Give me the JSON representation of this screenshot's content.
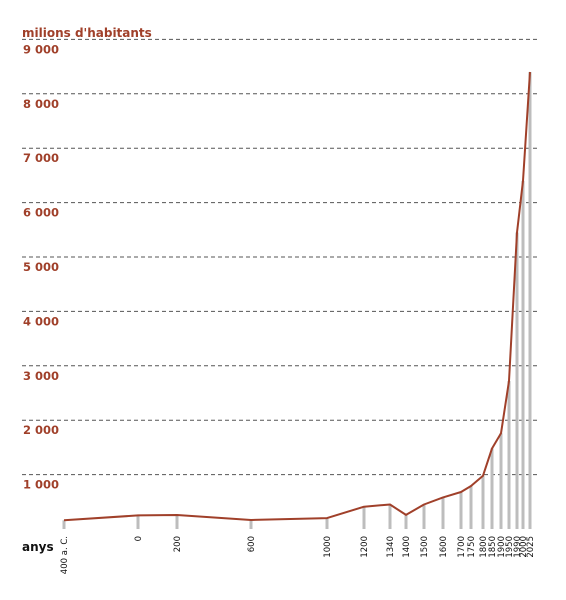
{
  "chart_data": {
    "type": "line",
    "ylabel": "milions d'habitants",
    "xlabel": "anys",
    "ylim": [
      0,
      9000
    ],
    "yticks": [
      "1 000",
      "2 000",
      "3 000",
      "4 000",
      "5 000",
      "6 000",
      "7 000",
      "8 000",
      "9 000"
    ],
    "grid": "dashed-horizontal",
    "categories": [
      "400 a. C.",
      "0",
      "200",
      "600",
      "1000",
      "1200",
      "1340",
      "1400",
      "1500",
      "1600",
      "1700",
      "1750",
      "1800",
      "1850",
      "1900",
      "1950",
      "1990",
      "2000",
      "2025"
    ],
    "series": [
      {
        "values": [
          160,
          250,
          257,
          165,
          200,
          410,
          450,
          260,
          450,
          580,
          680,
          790,
          980,
          1480,
          1760,
          2720,
          5450,
          6400,
          8400
        ]
      }
    ],
    "colors": {
      "line": "#a0402a",
      "bars": "#bdbdbd",
      "grid": "#555555",
      "text": "#a0402a"
    }
  }
}
